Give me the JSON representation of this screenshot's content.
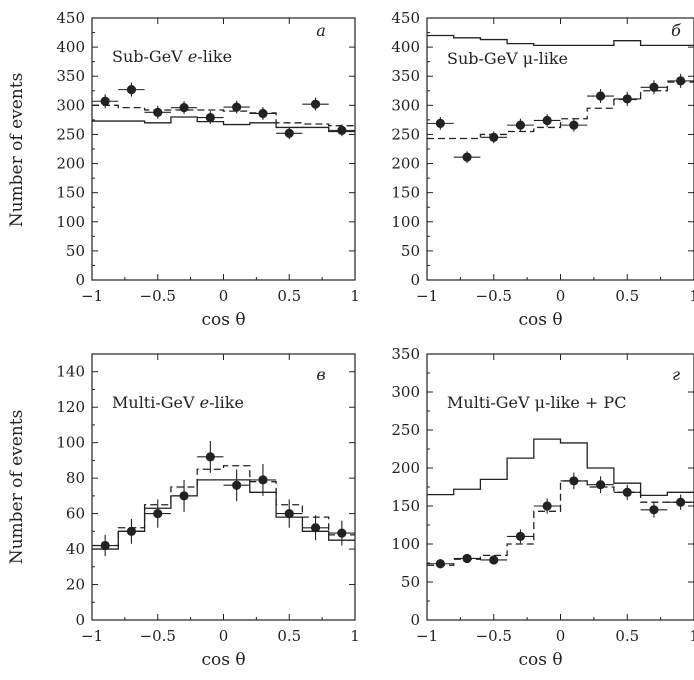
{
  "chart_data": [
    {
      "id": "a",
      "type": "scatter",
      "panel_letter": "а",
      "label_parts": [
        "Sub-GeV ",
        "e",
        "-like"
      ],
      "xlabel": "cos θ",
      "ylabel": "Number of events",
      "xlim": [
        -1,
        1
      ],
      "ylim": [
        0,
        450
      ],
      "xticks": [
        -1,
        -0.5,
        0,
        0.5,
        1
      ],
      "xtick_labels": [
        "−1",
        "−0.5",
        "0",
        "0.5",
        "1"
      ],
      "yticks": [
        0,
        50,
        100,
        150,
        200,
        250,
        300,
        350,
        400,
        450
      ],
      "ytick_labels": [
        "0",
        "50",
        "100",
        "150",
        "200",
        "250",
        "300",
        "350",
        "400",
        "450"
      ],
      "bin_edges": [
        -1,
        -0.8,
        -0.6,
        -0.4,
        -0.2,
        0,
        0.2,
        0.4,
        0.6,
        0.8,
        1
      ],
      "solid_histogram": [
        273,
        273,
        270,
        280,
        272,
        267,
        270,
        262,
        262,
        255
      ],
      "dashed_histogram": [
        300,
        296,
        292,
        292,
        292,
        290,
        287,
        270,
        268,
        265
      ],
      "points": {
        "x": [
          -0.9,
          -0.7,
          -0.5,
          -0.3,
          -0.1,
          0.1,
          0.3,
          0.5,
          0.7,
          0.9
        ],
        "y": [
          307,
          327,
          288,
          296,
          279,
          297,
          286,
          252,
          302,
          257
        ],
        "yerr": [
          12,
          12,
          11,
          11,
          11,
          11,
          11,
          10,
          11,
          10
        ]
      }
    },
    {
      "id": "b",
      "type": "scatter",
      "panel_letter": "б",
      "label_parts": [
        "Sub-GeV μ-like"
      ],
      "xlabel": "cos θ",
      "ylabel": "",
      "xlim": [
        -1,
        1
      ],
      "ylim": [
        0,
        450
      ],
      "xticks": [
        -1,
        -0.5,
        0,
        0.5,
        1
      ],
      "xtick_labels": [
        "−1",
        "−0.5",
        "0",
        "0.5",
        "1"
      ],
      "yticks": [
        0,
        50,
        100,
        150,
        200,
        250,
        300,
        350,
        400,
        450
      ],
      "ytick_labels": [
        "0",
        "50",
        "100",
        "150",
        "200",
        "250",
        "300",
        "350",
        "400",
        "450"
      ],
      "bin_edges": [
        -1,
        -0.8,
        -0.6,
        -0.4,
        -0.2,
        0,
        0.2,
        0.4,
        0.6,
        0.8,
        1
      ],
      "solid_histogram": [
        420,
        416,
        413,
        406,
        403,
        403,
        403,
        411,
        403,
        403
      ],
      "dashed_histogram": [
        243,
        243,
        250,
        255,
        262,
        277,
        295,
        310,
        325,
        340
      ],
      "points": {
        "x": [
          -0.9,
          -0.7,
          -0.5,
          -0.3,
          -0.1,
          0.1,
          0.3,
          0.5,
          0.7,
          0.9
        ],
        "y": [
          269,
          211,
          245,
          266,
          274,
          266,
          316,
          311,
          331,
          342
        ],
        "yerr": [
          11,
          10,
          10,
          11,
          11,
          11,
          12,
          12,
          12,
          12
        ]
      }
    },
    {
      "id": "c",
      "type": "scatter",
      "panel_letter": "в",
      "label_parts": [
        "Multi-GeV ",
        "e",
        "-like"
      ],
      "xlabel": "cos θ",
      "ylabel": "Number of events",
      "xlim": [
        -1,
        1
      ],
      "ylim": [
        0,
        150
      ],
      "xticks": [
        -1,
        -0.5,
        0,
        0.5,
        1
      ],
      "xtick_labels": [
        "−1",
        "−0.5",
        "0",
        "0.5",
        "1"
      ],
      "yticks": [
        0,
        20,
        40,
        60,
        80,
        100,
        120,
        140
      ],
      "ytick_labels": [
        "0",
        "20",
        "40",
        "60",
        "80",
        "100",
        "120",
        "140"
      ],
      "bin_edges": [
        -1,
        -0.8,
        -0.6,
        -0.4,
        -0.2,
        0,
        0.2,
        0.4,
        0.6,
        0.8,
        1
      ],
      "solid_histogram": [
        40,
        50,
        63,
        70,
        79,
        79,
        72,
        58,
        50,
        45
      ],
      "dashed_histogram": [
        42,
        52,
        65,
        75,
        85,
        87,
        78,
        65,
        58,
        48
      ],
      "points": {
        "x": [
          -0.9,
          -0.7,
          -0.5,
          -0.3,
          -0.1,
          0.1,
          0.3,
          0.5,
          0.7,
          0.9
        ],
        "y": [
          42,
          50,
          60,
          70,
          92,
          76,
          79,
          60,
          52,
          49
        ],
        "yerr": [
          6,
          7,
          8,
          9,
          9,
          9,
          9,
          8,
          7,
          7
        ]
      }
    },
    {
      "id": "d",
      "type": "scatter",
      "panel_letter": "г",
      "label_parts": [
        "Multi-GeV μ-like + PC"
      ],
      "xlabel": "cos θ",
      "ylabel": "",
      "xlim": [
        -1,
        1
      ],
      "ylim": [
        0,
        350
      ],
      "xticks": [
        -1,
        -0.5,
        0,
        0.5,
        1
      ],
      "xtick_labels": [
        "−1",
        "−0.5",
        "0",
        "0.5",
        "1"
      ],
      "yticks": [
        0,
        50,
        100,
        150,
        200,
        250,
        300,
        350
      ],
      "ytick_labels": [
        "0",
        "50",
        "100",
        "150",
        "200",
        "250",
        "300",
        "350"
      ],
      "bin_edges": [
        -1,
        -0.8,
        -0.6,
        -0.4,
        -0.2,
        0,
        0.2,
        0.4,
        0.6,
        0.8,
        1
      ],
      "solid_histogram": [
        165,
        172,
        185,
        213,
        238,
        233,
        200,
        180,
        164,
        168
      ],
      "dashed_histogram": [
        72,
        80,
        85,
        100,
        143,
        183,
        175,
        168,
        155,
        155
      ],
      "points": {
        "x": [
          -0.9,
          -0.7,
          -0.5,
          -0.3,
          -0.1,
          0.1,
          0.3,
          0.5,
          0.7,
          0.9
        ],
        "y": [
          74,
          81,
          79,
          110,
          150,
          183,
          178,
          168,
          145,
          155
        ],
        "yerr": [
          6,
          6,
          6,
          9,
          10,
          11,
          11,
          10,
          10,
          10
        ]
      }
    }
  ]
}
